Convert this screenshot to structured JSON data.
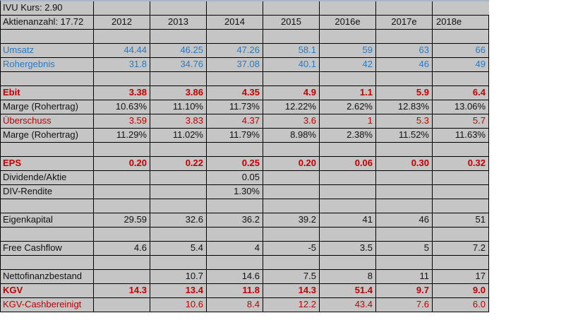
{
  "meta": {
    "app_kind": "spreadsheet-financial-table",
    "colors": {
      "cell_background": "#c5c5c5",
      "grid_line": "#000000",
      "top_edge_line": "#a9b6ca",
      "accent_blue_text": "#2e78bd",
      "accent_red_text": "#c00000",
      "page_background": "#ffffff"
    }
  },
  "table": {
    "stock_info": {
      "kurs_label": "IVU Kurs: 2.90",
      "aktienanzahl_label": "Aktienanzahl: 17.72"
    },
    "year_headers": [
      "2012",
      "2013",
      "2014",
      "2015",
      "2016e",
      "2017e",
      "2018e"
    ],
    "rows": [
      {
        "label": "IVU Kurs: 2.90",
        "style": "plain",
        "variant": "first",
        "values": [
          "",
          "",
          "",
          "",
          "",
          "",
          ""
        ]
      },
      {
        "label": "Aktienanzahl: 17.72",
        "style": "plain",
        "variant": "header",
        "values": [
          "2012",
          "2013",
          "2014",
          "2015",
          "2016e",
          "2017e",
          "2018e"
        ]
      },
      {
        "label": "",
        "style": "plain",
        "variant": "normal",
        "values": [
          "",
          "",
          "",
          "",
          "",
          "",
          ""
        ]
      },
      {
        "label": "Umsatz",
        "style": "blue",
        "variant": "normal",
        "values": [
          "44.44",
          "46.25",
          "47.26",
          "58.1",
          "59",
          "63",
          "66"
        ]
      },
      {
        "label": "Rohergebnis",
        "style": "blue",
        "variant": "normal",
        "values": [
          "31.8",
          "34.76",
          "37.08",
          "40.1",
          "42",
          "46",
          "49"
        ]
      },
      {
        "label": "",
        "style": "plain",
        "variant": "normal",
        "values": [
          "",
          "",
          "",
          "",
          "",
          "",
          ""
        ]
      },
      {
        "label": "Ebit",
        "style": "red_bold",
        "variant": "normal",
        "values": [
          "3.38",
          "3.86",
          "4.35",
          "4.9",
          "1.1",
          "5.9",
          "6.4"
        ]
      },
      {
        "label": "Marge (Rohertrag)",
        "style": "plain",
        "variant": "normal",
        "values": [
          "10.63%",
          "11.10%",
          "11.73%",
          "12.22%",
          "2.62%",
          "12.83%",
          "13.06%"
        ]
      },
      {
        "label": "Überschuss",
        "style": "red",
        "variant": "normal",
        "values": [
          "3.59",
          "3.83",
          "4.37",
          "3.6",
          "1",
          "5.3",
          "5.7"
        ]
      },
      {
        "label": "Marge (Rohertrag)",
        "style": "plain",
        "variant": "normal",
        "values": [
          "11.29%",
          "11.02%",
          "11.79%",
          "8.98%",
          "2.38%",
          "11.52%",
          "11.63%"
        ]
      },
      {
        "label": "",
        "style": "plain",
        "variant": "normal",
        "values": [
          "",
          "",
          "",
          "",
          "",
          "",
          ""
        ]
      },
      {
        "label": "EPS",
        "style": "red_bold",
        "variant": "normal",
        "values": [
          "0.20",
          "0.22",
          "0.25",
          "0.20",
          "0.06",
          "0.30",
          "0.32"
        ]
      },
      {
        "label": "Dividende/Aktie",
        "style": "plain",
        "variant": "normal",
        "values": [
          "",
          "",
          "0.05",
          "",
          "",
          "",
          ""
        ]
      },
      {
        "label": "DIV-Rendite",
        "style": "plain",
        "variant": "normal",
        "values": [
          "",
          "",
          "1.30%",
          "",
          "",
          "",
          ""
        ]
      },
      {
        "label": "",
        "style": "plain",
        "variant": "normal",
        "values": [
          "",
          "",
          "",
          "",
          "",
          "",
          ""
        ]
      },
      {
        "label": "Eigenkapital",
        "style": "plain",
        "variant": "normal",
        "values": [
          "29.59",
          "32.6",
          "36.2",
          "39.2",
          "41",
          "46",
          "51"
        ]
      },
      {
        "label": "",
        "style": "plain",
        "variant": "normal",
        "values": [
          "",
          "",
          "",
          "",
          "",
          "",
          ""
        ]
      },
      {
        "label": "Free Cashflow",
        "style": "plain",
        "variant": "normal",
        "values": [
          "4.6",
          "5.4",
          "4",
          "-5",
          "3.5",
          "5",
          "7.2"
        ]
      },
      {
        "label": "",
        "style": "plain",
        "variant": "normal",
        "values": [
          "",
          "",
          "",
          "",
          "",
          "",
          ""
        ]
      },
      {
        "label": "Nettofinanzbestand",
        "style": "plain",
        "variant": "normal",
        "values": [
          "",
          "10.7",
          "14.6",
          "7.5",
          "8",
          "11",
          "17"
        ]
      },
      {
        "label": "KGV",
        "style": "red_bold",
        "variant": "normal",
        "values": [
          "14.3",
          "13.4",
          "11.8",
          "14.3",
          "51.4",
          "9.7",
          "9.0"
        ]
      },
      {
        "label": "KGV-Cashbereinigt",
        "style": "red",
        "variant": "normal",
        "values": [
          "",
          "10.6",
          "8.4",
          "12.2",
          "43.4",
          "7.6",
          "6.0"
        ]
      }
    ]
  }
}
